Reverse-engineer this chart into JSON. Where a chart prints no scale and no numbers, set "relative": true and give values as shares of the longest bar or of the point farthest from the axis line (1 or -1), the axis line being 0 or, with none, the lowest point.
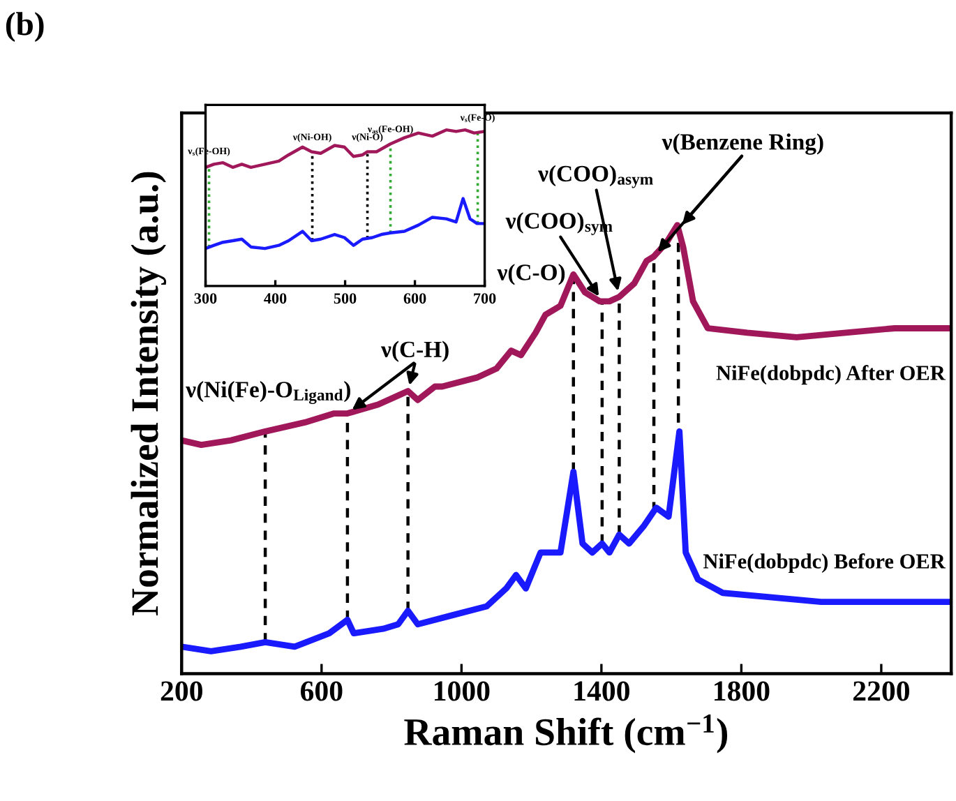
{
  "chart_data": [
    {
      "type": "line",
      "title": "(b)",
      "xlabel": "Raman Shift (cm$^{−1}$)",
      "ylabel": "Normalized Intensity (a.u.)",
      "relative": true,
      "xlim": [
        200,
        2400
      ],
      "xticks": [
        200,
        600,
        1000,
        1400,
        1800,
        2200
      ],
      "tick_labels": "x",
      "legend": false,
      "grid": false,
      "series": [
        {
          "name": "NiFe(dobpdc) After OER",
          "color": "#a0185a",
          "x": [
            200,
            256,
            341,
            439,
            552,
            636,
            674,
            762,
            819,
            847,
            875,
            924,
            945,
            1044,
            1100,
            1142,
            1170,
            1212,
            1240,
            1283,
            1320,
            1353,
            1395,
            1423,
            1451,
            1494,
            1529,
            1550,
            1585,
            1617,
            1634,
            1662,
            1704,
            1817,
            1958,
            2098,
            2239,
            2400
          ],
          "values": [
            0.52,
            0.51,
            0.52,
            0.54,
            0.56,
            0.58,
            0.58,
            0.6,
            0.62,
            0.63,
            0.61,
            0.64,
            0.64,
            0.66,
            0.68,
            0.72,
            0.71,
            0.76,
            0.8,
            0.82,
            0.89,
            0.85,
            0.83,
            0.83,
            0.84,
            0.87,
            0.92,
            0.93,
            0.96,
            1.0,
            0.95,
            0.83,
            0.77,
            0.76,
            0.75,
            0.76,
            0.77,
            0.77
          ]
        },
        {
          "name": "NiFe(dobpdc) Before OER",
          "color": "#1a1aff",
          "x": [
            200,
            284,
            369,
            439,
            523,
            622,
            674,
            692,
            776,
            819,
            847,
            875,
            973,
            1072,
            1128,
            1156,
            1184,
            1226,
            1283,
            1320,
            1346,
            1374,
            1402,
            1423,
            1451,
            1479,
            1522,
            1557,
            1592,
            1623,
            1641,
            1676,
            1747,
            1887,
            2028,
            2168,
            2400
          ],
          "values": [
            0.06,
            0.05,
            0.06,
            0.07,
            0.06,
            0.09,
            0.12,
            0.09,
            0.1,
            0.11,
            0.14,
            0.11,
            0.13,
            0.15,
            0.19,
            0.22,
            0.19,
            0.27,
            0.27,
            0.45,
            0.29,
            0.27,
            0.29,
            0.27,
            0.31,
            0.29,
            0.33,
            0.37,
            0.35,
            0.54,
            0.27,
            0.21,
            0.18,
            0.17,
            0.16,
            0.16,
            0.16
          ]
        }
      ],
      "ref_lines": [
        {
          "axis": "x",
          "value": 439,
          "color": "#000000",
          "line_style": "dashed"
        },
        {
          "axis": "x",
          "value": 674,
          "color": "#000000",
          "line_style": "dashed"
        },
        {
          "axis": "x",
          "value": 847,
          "color": "#000000",
          "line_style": "dashed"
        },
        {
          "axis": "x",
          "value": 1320,
          "color": "#000000",
          "line_style": "dashed"
        },
        {
          "axis": "x",
          "value": 1402,
          "color": "#000000",
          "line_style": "dashed"
        },
        {
          "axis": "x",
          "value": 1451,
          "color": "#000000",
          "line_style": "dashed"
        },
        {
          "axis": "x",
          "value": 1550,
          "color": "#000000",
          "line_style": "dashed"
        },
        {
          "axis": "x",
          "value": 1620,
          "color": "#000000",
          "line_style": "dashed"
        }
      ],
      "annotations": [
        {
          "text": "ν(Ni(Fe)-O$_{Ligand}$)",
          "x": 439,
          "y": 0.54
        },
        {
          "text": "ν(C-H)",
          "x": 674,
          "y": 0.58
        },
        {
          "text": "ν(C-O)",
          "x": 1320,
          "y": 0.89
        },
        {
          "text": "ν(COO)$_{sym}$",
          "x": 1402,
          "y": 0.83
        },
        {
          "text": "ν(COO)$_{asym}$",
          "x": 1451,
          "y": 0.84
        },
        {
          "text": "ν(Benzene Ring)",
          "x": 1550,
          "y": 0.93
        }
      ]
    },
    {
      "type": "line",
      "relative": true,
      "xlim": [
        300,
        700
      ],
      "xticks": [
        300,
        400,
        500,
        600,
        700
      ],
      "tick_labels": "x",
      "legend": false,
      "grid": false,
      "series": [
        {
          "color": "#a0185a",
          "x": [
            300,
            312,
            325,
            339,
            352,
            365,
            385,
            405,
            419,
            439,
            452,
            465,
            485,
            499,
            512,
            525,
            532,
            545,
            565,
            585,
            605,
            625,
            645,
            659,
            672,
            685,
            700
          ],
          "values": [
            0.76,
            0.78,
            0.79,
            0.76,
            0.78,
            0.76,
            0.78,
            0.8,
            0.84,
            0.89,
            0.86,
            0.85,
            0.9,
            0.89,
            0.83,
            0.84,
            0.86,
            0.86,
            0.91,
            0.95,
            0.98,
            0.96,
            1.0,
            0.99,
            1.0,
            0.98,
            0.99
          ]
        },
        {
          "color": "#1a1aff",
          "x": [
            300,
            312,
            325,
            339,
            352,
            365,
            385,
            405,
            419,
            439,
            452,
            465,
            485,
            499,
            512,
            525,
            539,
            552,
            565,
            585,
            605,
            625,
            645,
            659,
            669,
            679,
            689,
            700
          ],
          "values": [
            0.24,
            0.26,
            0.28,
            0.29,
            0.3,
            0.25,
            0.24,
            0.26,
            0.29,
            0.35,
            0.29,
            0.3,
            0.33,
            0.31,
            0.26,
            0.3,
            0.31,
            0.33,
            0.34,
            0.35,
            0.39,
            0.44,
            0.43,
            0.41,
            0.56,
            0.43,
            0.4,
            0.4
          ]
        }
      ],
      "ref_lines": [
        {
          "axis": "x",
          "value": 305,
          "label": "ν$_{s}$(Fe-OH)",
          "color": "#33aa33",
          "line_style": "dotted"
        },
        {
          "axis": "x",
          "value": 453,
          "label": "ν(Ni-OH)",
          "color": "#000000",
          "line_style": "dotted"
        },
        {
          "axis": "x",
          "value": 532,
          "label": "ν(Ni-O)",
          "color": "#000000",
          "line_style": "dotted"
        },
        {
          "axis": "x",
          "value": 565,
          "label": "ν$_{as}$(Fe-OH)",
          "color": "#33aa33",
          "line_style": "dotted"
        },
        {
          "axis": "x",
          "value": 690,
          "label": "ν$_{s}$(Fe-O)",
          "color": "#33aa33",
          "line_style": "dotted"
        }
      ]
    }
  ]
}
